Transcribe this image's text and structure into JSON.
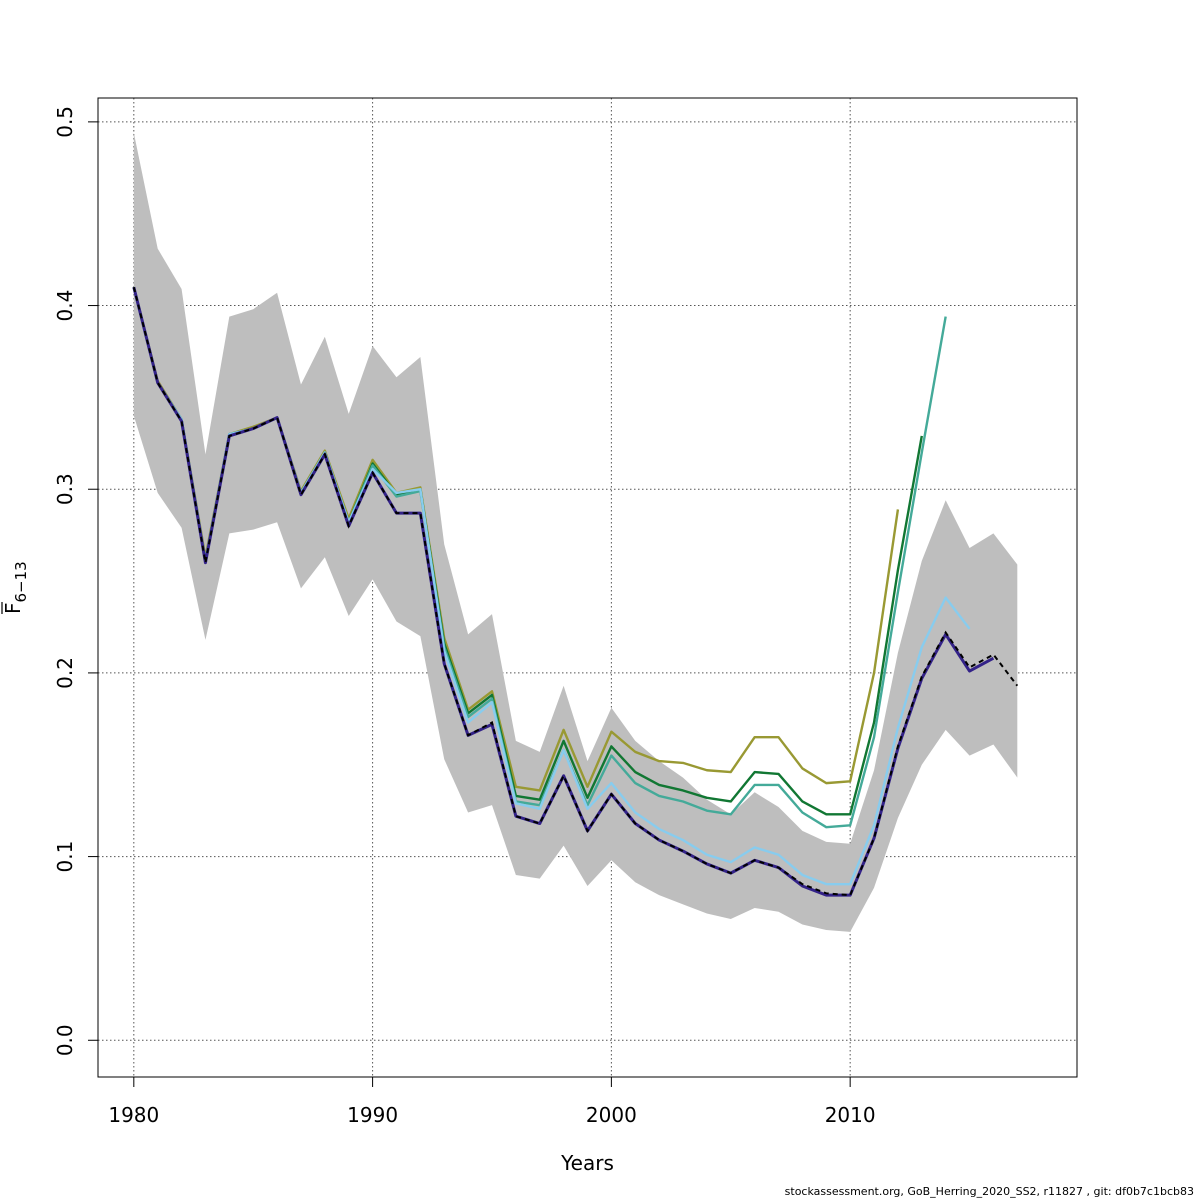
{
  "footer": {
    "text": "stockassessment.org, GoB_Herring_2020_SS2, r11827 , git: df0b7c1bcb83"
  },
  "chart_data": {
    "type": "line",
    "xlabel": "Years",
    "ylabel_base": "F",
    "ylabel_sub": "6−13",
    "xlim": [
      1978.5,
      2019.5
    ],
    "ylim": [
      -0.02,
      0.513
    ],
    "x_ticks": [
      1980,
      1990,
      2000,
      2010
    ],
    "x_tick_labels": [
      "1980",
      "1990",
      "2000",
      "2010"
    ],
    "y_ticks": [
      0.0,
      0.1,
      0.2,
      0.3,
      0.4,
      0.5
    ],
    "y_tick_labels": [
      "0.0",
      "0.1",
      "0.2",
      "0.3",
      "0.4",
      "0.5"
    ],
    "grid": true,
    "colors": {
      "band": "#bebebe",
      "grid": "#555555",
      "base": "#000000",
      "series": [
        "#332288",
        "#88CCEE",
        "#44AA99",
        "#117733",
        "#999933"
      ]
    },
    "band": {
      "x": [
        1980,
        1981,
        1982,
        1983,
        1984,
        1985,
        1986,
        1987,
        1988,
        1989,
        1990,
        1991,
        1992,
        1993,
        1994,
        1995,
        1996,
        1997,
        1998,
        1999,
        2000,
        2001,
        2002,
        2003,
        2004,
        2005,
        2006,
        2007,
        2008,
        2009,
        2010,
        2011,
        2012,
        2013,
        2014,
        2015,
        2016,
        2017
      ],
      "upper": [
        0.494,
        0.431,
        0.409,
        0.319,
        0.394,
        0.398,
        0.407,
        0.357,
        0.383,
        0.341,
        0.378,
        0.361,
        0.372,
        0.27,
        0.221,
        0.232,
        0.163,
        0.157,
        0.193,
        0.152,
        0.181,
        0.163,
        0.152,
        0.143,
        0.131,
        0.123,
        0.135,
        0.127,
        0.114,
        0.108,
        0.107,
        0.147,
        0.211,
        0.261,
        0.294,
        0.268,
        0.276,
        0.259
      ],
      "lower": [
        0.34,
        0.298,
        0.279,
        0.218,
        0.276,
        0.278,
        0.282,
        0.246,
        0.263,
        0.231,
        0.251,
        0.228,
        0.22,
        0.153,
        0.124,
        0.128,
        0.09,
        0.088,
        0.106,
        0.084,
        0.098,
        0.086,
        0.079,
        0.074,
        0.069,
        0.066,
        0.072,
        0.07,
        0.063,
        0.06,
        0.059,
        0.083,
        0.121,
        0.15,
        0.169,
        0.155,
        0.161,
        0.143
      ]
    },
    "base_line": {
      "x": [
        1980,
        1981,
        1982,
        1983,
        1984,
        1985,
        1986,
        1987,
        1988,
        1989,
        1990,
        1991,
        1992,
        1993,
        1994,
        1995,
        1996,
        1997,
        1998,
        1999,
        2000,
        2001,
        2002,
        2003,
        2004,
        2005,
        2006,
        2007,
        2008,
        2009,
        2010,
        2011,
        2012,
        2013,
        2014,
        2015,
        2016,
        2017
      ],
      "y": [
        0.41,
        0.358,
        0.337,
        0.26,
        0.329,
        0.333,
        0.339,
        0.297,
        0.319,
        0.28,
        0.309,
        0.287,
        0.287,
        0.205,
        0.166,
        0.173,
        0.122,
        0.118,
        0.144,
        0.114,
        0.134,
        0.118,
        0.109,
        0.103,
        0.096,
        0.091,
        0.098,
        0.094,
        0.085,
        0.08,
        0.079,
        0.11,
        0.16,
        0.198,
        0.222,
        0.203,
        0.21,
        0.193
      ]
    },
    "series": [
      {
        "x": [
          1980,
          1981,
          1982,
          1983,
          1984,
          1985,
          1986,
          1987,
          1988,
          1989,
          1990,
          1991,
          1992,
          1993,
          1994,
          1995,
          1996,
          1997,
          1998,
          1999,
          2000,
          2001,
          2002,
          2003,
          2004,
          2005,
          2006,
          2007,
          2008,
          2009,
          2010,
          2011,
          2012,
          2013,
          2014,
          2015,
          2016
        ],
        "values": [
          0.41,
          0.358,
          0.337,
          0.26,
          0.329,
          0.333,
          0.339,
          0.297,
          0.319,
          0.28,
          0.309,
          0.287,
          0.287,
          0.205,
          0.166,
          0.172,
          0.122,
          0.118,
          0.144,
          0.114,
          0.134,
          0.118,
          0.109,
          0.103,
          0.096,
          0.091,
          0.098,
          0.094,
          0.084,
          0.079,
          0.079,
          0.11,
          0.159,
          0.197,
          0.221,
          0.201,
          0.208
        ]
      },
      {
        "x": [
          1980,
          1981,
          1982,
          1983,
          1984,
          1985,
          1986,
          1987,
          1988,
          1989,
          1990,
          1991,
          1992,
          1993,
          1994,
          1995,
          1996,
          1997,
          1998,
          1999,
          2000,
          2001,
          2002,
          2003,
          2004,
          2005,
          2006,
          2007,
          2008,
          2009,
          2010,
          2011,
          2012,
          2013,
          2014,
          2015
        ],
        "values": [
          0.41,
          0.358,
          0.338,
          0.261,
          0.33,
          0.333,
          0.339,
          0.298,
          0.32,
          0.282,
          0.311,
          0.298,
          0.3,
          0.212,
          0.173,
          0.184,
          0.129,
          0.126,
          0.158,
          0.126,
          0.14,
          0.124,
          0.115,
          0.109,
          0.101,
          0.097,
          0.105,
          0.101,
          0.09,
          0.085,
          0.085,
          0.117,
          0.17,
          0.214,
          0.241,
          0.224
        ]
      },
      {
        "x": [
          1980,
          1981,
          1982,
          1983,
          1984,
          1985,
          1986,
          1987,
          1988,
          1989,
          1990,
          1991,
          1992,
          1993,
          1994,
          1995,
          1996,
          1997,
          1998,
          1999,
          2000,
          2001,
          2002,
          2003,
          2004,
          2005,
          2006,
          2007,
          2008,
          2009,
          2010,
          2011,
          2012,
          2013,
          2014
        ],
        "values": [
          0.41,
          0.358,
          0.338,
          0.261,
          0.33,
          0.333,
          0.339,
          0.298,
          0.32,
          0.282,
          0.313,
          0.296,
          0.299,
          0.214,
          0.176,
          0.186,
          0.13,
          0.128,
          0.158,
          0.128,
          0.155,
          0.14,
          0.133,
          0.13,
          0.125,
          0.123,
          0.139,
          0.139,
          0.124,
          0.116,
          0.117,
          0.165,
          0.244,
          0.32,
          0.394
        ]
      },
      {
        "x": [
          1980,
          1981,
          1982,
          1983,
          1984,
          1985,
          1986,
          1987,
          1988,
          1989,
          1990,
          1991,
          1992,
          1993,
          1994,
          1995,
          1996,
          1997,
          1998,
          1999,
          2000,
          2001,
          2002,
          2003,
          2004,
          2005,
          2006,
          2007,
          2008,
          2009,
          2010,
          2011,
          2012,
          2013
        ],
        "values": [
          0.41,
          0.358,
          0.338,
          0.261,
          0.33,
          0.333,
          0.339,
          0.298,
          0.32,
          0.282,
          0.314,
          0.297,
          0.3,
          0.216,
          0.178,
          0.188,
          0.133,
          0.131,
          0.163,
          0.132,
          0.16,
          0.146,
          0.139,
          0.136,
          0.132,
          0.13,
          0.146,
          0.145,
          0.13,
          0.123,
          0.123,
          0.173,
          0.256,
          0.329
        ]
      },
      {
        "x": [
          1980,
          1981,
          1982,
          1983,
          1984,
          1985,
          1986,
          1987,
          1988,
          1989,
          1990,
          1991,
          1992,
          1993,
          1994,
          1995,
          1996,
          1997,
          1998,
          1999,
          2000,
          2001,
          2002,
          2003,
          2004,
          2005,
          2006,
          2007,
          2008,
          2009,
          2010,
          2011,
          2012
        ],
        "values": [
          0.41,
          0.359,
          0.338,
          0.263,
          0.33,
          0.334,
          0.339,
          0.299,
          0.321,
          0.284,
          0.316,
          0.298,
          0.301,
          0.219,
          0.18,
          0.19,
          0.138,
          0.136,
          0.169,
          0.138,
          0.168,
          0.157,
          0.152,
          0.151,
          0.147,
          0.146,
          0.165,
          0.165,
          0.148,
          0.14,
          0.141,
          0.2,
          0.289
        ]
      }
    ]
  }
}
